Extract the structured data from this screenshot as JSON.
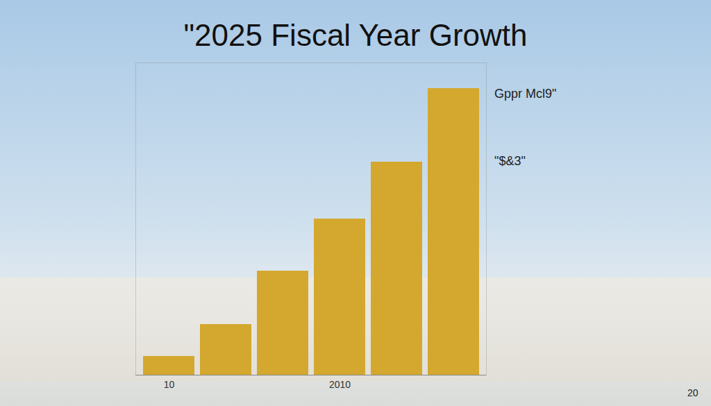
{
  "chart_data": {
    "type": "bar",
    "title": "\"2025 Fiscal Year Growth",
    "categories": [
      "10",
      null,
      null,
      "2010",
      null,
      null
    ],
    "values": [
      27,
      73,
      150,
      225,
      307,
      413
    ],
    "color": "#d4a82e",
    "ylim": [
      0,
      450
    ],
    "tick_labels": "x",
    "annotations": [
      "Gppr Mcl9\"",
      "\"$&3\"",
      "20"
    ]
  }
}
